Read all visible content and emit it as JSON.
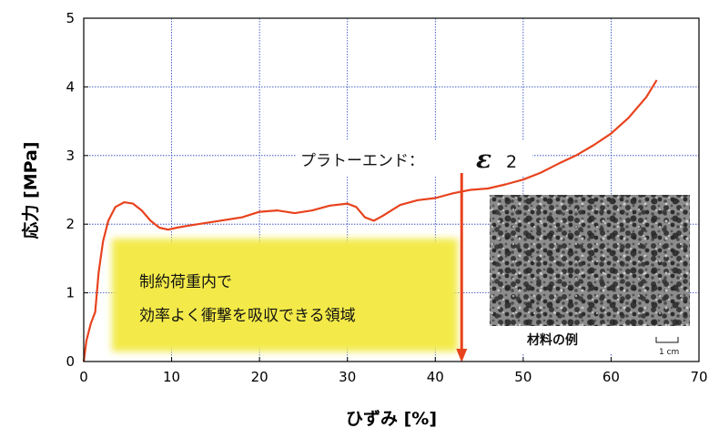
{
  "chart_data": {
    "type": "line",
    "xlabel": "ひずみ [%]",
    "ylabel": "応力 [MPa]",
    "xlim": [
      0,
      70
    ],
    "ylim": [
      0,
      5
    ],
    "x_ticks": [
      0,
      10,
      20,
      30,
      40,
      50,
      60,
      70
    ],
    "y_ticks": [
      0,
      1,
      2,
      3,
      4,
      5
    ],
    "grid": true,
    "series": [
      {
        "color": "#e8431e",
        "points": [
          [
            0,
            0
          ],
          [
            0.3,
            0.3
          ],
          [
            0.8,
            0.55
          ],
          [
            1.3,
            0.72
          ],
          [
            1.7,
            1.3
          ],
          [
            2.2,
            1.75
          ],
          [
            2.8,
            2.05
          ],
          [
            3.6,
            2.25
          ],
          [
            4.6,
            2.32
          ],
          [
            5.6,
            2.3
          ],
          [
            6.6,
            2.2
          ],
          [
            7.6,
            2.05
          ],
          [
            8.6,
            1.95
          ],
          [
            9.6,
            1.92
          ],
          [
            10.6,
            1.95
          ],
          [
            12,
            1.98
          ],
          [
            14,
            2.02
          ],
          [
            16,
            2.06
          ],
          [
            18,
            2.1
          ],
          [
            20,
            2.18
          ],
          [
            22,
            2.2
          ],
          [
            24,
            2.16
          ],
          [
            26,
            2.2
          ],
          [
            28,
            2.27
          ],
          [
            30,
            2.3
          ],
          [
            31,
            2.25
          ],
          [
            32,
            2.1
          ],
          [
            33,
            2.05
          ],
          [
            34,
            2.12
          ],
          [
            36,
            2.28
          ],
          [
            38,
            2.35
          ],
          [
            40,
            2.38
          ],
          [
            42,
            2.45
          ],
          [
            44,
            2.5
          ],
          [
            46,
            2.52
          ],
          [
            48,
            2.58
          ],
          [
            50,
            2.65
          ],
          [
            52,
            2.75
          ],
          [
            54,
            2.88
          ],
          [
            56,
            3.0
          ],
          [
            58,
            3.15
          ],
          [
            60,
            3.32
          ],
          [
            62,
            3.55
          ],
          [
            64,
            3.85
          ],
          [
            65.2,
            4.1
          ]
        ]
      }
    ],
    "annotations": {
      "plateau_label": "プラトーエンド：",
      "epsilon_symbol": "ε",
      "epsilon_subscript": "2",
      "plateau_end_x": 43,
      "highlight_line1": "制約荷重内で",
      "highlight_line2": "効率よく衝撃を吸収できる領域",
      "highlight_color": "#f3ea4a",
      "material_caption": "材料の例",
      "scale_bar_label": "1 cm"
    }
  },
  "colors": {
    "grid": "#1f3fbf",
    "axis": "#000000",
    "curve": "#e8431e",
    "arrow": "#e8431e"
  }
}
